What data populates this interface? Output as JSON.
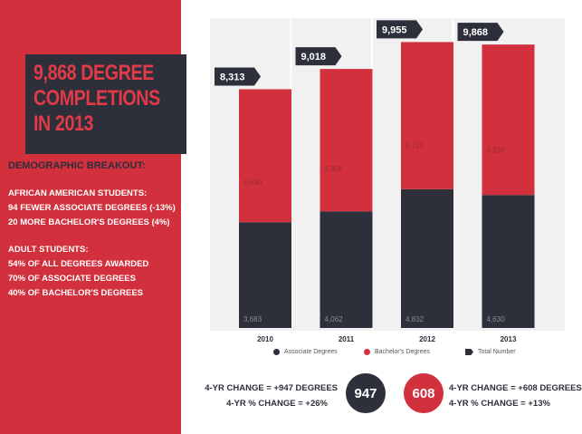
{
  "sidebar": {
    "title_lines": [
      "9,868 DEGREE",
      "COMPLETIONS",
      "IN 2013"
    ],
    "demographic_heading": "DEMOGRAPHIC BREAKOUT:",
    "african_american": [
      "AFRICAN AMERICAN STUDENTS:",
      "94 FEWER ASSOCIATE DEGREES (-13%)",
      "20 MORE BACHELOR'S DEGREES (4%)"
    ],
    "adult": [
      "ADULT STUDENTS:",
      "54% OF ALL DEGREES AWARDED",
      "70% OF ASSOCIATE DEGREES",
      "40% OF BACHELOR'S DEGREES"
    ]
  },
  "colors": {
    "red": "#d1303c",
    "dark": "#2d2f3a",
    "title_red": "#e23a46",
    "chart_bg": "#f1f1f1"
  },
  "chart_data": {
    "type": "bar",
    "stacked": true,
    "categories": [
      "2010",
      "2011",
      "2012",
      "2013"
    ],
    "series": [
      {
        "name": "Associate Degrees",
        "values": [
          3683,
          4062,
          4832,
          4630
        ],
        "color": "#2d2f3a"
      },
      {
        "name": "Bachelor's Degrees",
        "values": [
          4630,
          4956,
          5123,
          5238
        ],
        "color": "#d1303c"
      }
    ],
    "totals": [
      8313,
      9018,
      9955,
      9868
    ],
    "associate_labels": [
      "3,683",
      "4,062",
      "4,832",
      "4,630"
    ],
    "bachelor_labels": [
      "4,630",
      "4,956",
      "5,123",
      "5,238"
    ],
    "total_labels": [
      "8,313",
      "9,018",
      "9,955",
      "9,868"
    ],
    "legend": [
      "Associate Degrees",
      "Bachelor's Degrees",
      "Total Number"
    ],
    "ylim": [
      0,
      10000
    ],
    "grid": false
  },
  "summary": {
    "associate_change": "4-YR CHANGE = +947 DEGREES",
    "associate_pct": "4-YR % CHANGE = +26%",
    "associate_circle": "947",
    "bachelor_circle": "608",
    "bachelor_change": "4-YR CHANGE = +608 DEGREES",
    "bachelor_pct": "4-YR % CHANGE = +13%"
  }
}
